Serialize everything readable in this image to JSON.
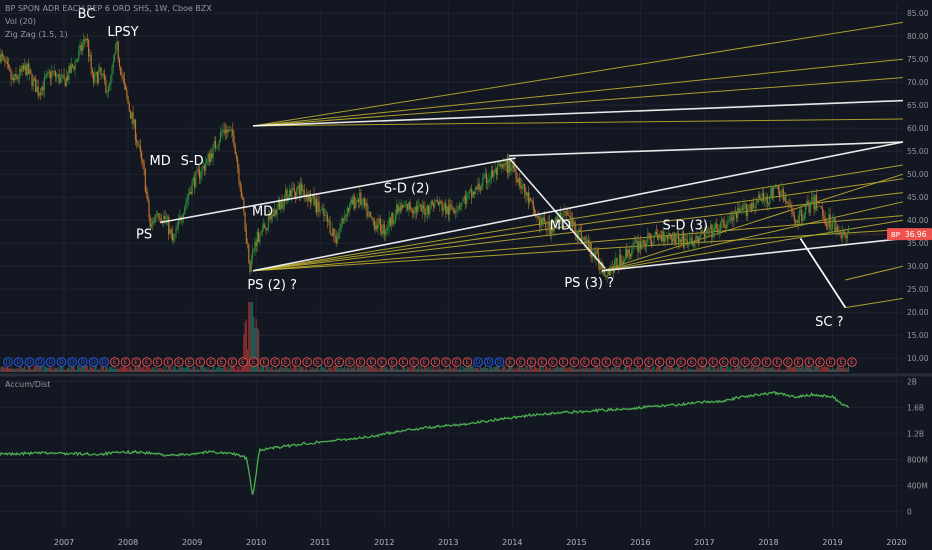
{
  "header": {
    "symbol_line": "BP SPON ADR EACH REP 6 ORD SHS, 1W, Cboe BZX",
    "vol_line": "Vol (20)",
    "zigzag_line": "Zig Zag (1.5, 1)"
  },
  "colors": {
    "background": "#131722",
    "up": "#26a69a",
    "down": "#ef5350",
    "candle_up": "#2e8b3a",
    "candle_down": "#c0742d",
    "channel_main": "#ffffff",
    "channel_minor": "#c8b72e",
    "accdist": "#4caf50",
    "price_badge": "#ef5350",
    "dividend_blue": "#2962ff"
  },
  "chart_data": [
    {
      "type": "candlestick",
      "price_axis": {
        "ticks": [
          "85.00",
          "80.00",
          "75.00",
          "70.00",
          "65.00",
          "60.00",
          "55.00",
          "50.00",
          "45.00",
          "40.00",
          "35.00",
          "30.00",
          "25.00",
          "20.00",
          "15.00",
          "10.00"
        ],
        "range": [
          7,
          87
        ]
      },
      "x_axis": {
        "ticks": [
          "2007",
          "2008",
          "2009",
          "2010",
          "2011",
          "2012",
          "2013",
          "2014",
          "2015",
          "2016",
          "2017",
          "2018",
          "2019",
          "2020"
        ],
        "range": [
          2006.5,
          2020.6
        ]
      },
      "last_price": {
        "symbol": "BP",
        "value": "36.96"
      },
      "price_path": [
        [
          2006.5,
          76
        ],
        [
          2006.7,
          70
        ],
        [
          2006.9,
          73
        ],
        [
          2007.1,
          68
        ],
        [
          2007.3,
          72
        ],
        [
          2007.5,
          70
        ],
        [
          2007.7,
          75
        ],
        [
          2007.85,
          80
        ],
        [
          2007.95,
          70
        ],
        [
          2008.05,
          72
        ],
        [
          2008.2,
          68
        ],
        [
          2008.32,
          78
        ],
        [
          2008.45,
          68
        ],
        [
          2008.6,
          60
        ],
        [
          2008.75,
          50
        ],
        [
          2008.85,
          38
        ],
        [
          2008.95,
          42
        ],
        [
          2009.1,
          40
        ],
        [
          2009.2,
          35
        ],
        [
          2009.35,
          42
        ],
        [
          2009.5,
          48
        ],
        [
          2009.7,
          52
        ],
        [
          2009.85,
          56
        ],
        [
          2010.0,
          60
        ],
        [
          2010.15,
          58
        ],
        [
          2010.25,
          48
        ],
        [
          2010.4,
          30
        ],
        [
          2010.5,
          36
        ],
        [
          2010.7,
          40
        ],
        [
          2010.9,
          44
        ],
        [
          2011.0,
          46
        ],
        [
          2011.2,
          47
        ],
        [
          2011.4,
          44
        ],
        [
          2011.6,
          40
        ],
        [
          2011.75,
          36
        ],
        [
          2011.9,
          42
        ],
        [
          2012.1,
          45
        ],
        [
          2012.3,
          40
        ],
        [
          2012.5,
          38
        ],
        [
          2012.7,
          42
        ],
        [
          2012.9,
          43
        ],
        [
          2013.1,
          42
        ],
        [
          2013.3,
          44
        ],
        [
          2013.5,
          42
        ],
        [
          2013.7,
          44
        ],
        [
          2013.9,
          46
        ],
        [
          2014.1,
          49
        ],
        [
          2014.3,
          51
        ],
        [
          2014.5,
          52
        ],
        [
          2014.7,
          46
        ],
        [
          2014.9,
          40
        ],
        [
          2015.1,
          38
        ],
        [
          2015.3,
          42
        ],
        [
          2015.5,
          38
        ],
        [
          2015.65,
          35
        ],
        [
          2015.8,
          32
        ],
        [
          2015.95,
          29
        ],
        [
          2016.1,
          30
        ],
        [
          2016.3,
          33
        ],
        [
          2016.5,
          35
        ],
        [
          2016.7,
          36
        ],
        [
          2016.9,
          37
        ],
        [
          2017.1,
          36
        ],
        [
          2017.3,
          35
        ],
        [
          2017.5,
          37
        ],
        [
          2017.7,
          38
        ],
        [
          2017.9,
          40
        ],
        [
          2018.1,
          42
        ],
        [
          2018.3,
          44
        ],
        [
          2018.5,
          45
        ],
        [
          2018.65,
          47
        ],
        [
          2018.8,
          43
        ],
        [
          2018.95,
          40
        ],
        [
          2019.1,
          43
        ],
        [
          2019.25,
          44
        ],
        [
          2019.4,
          40
        ],
        [
          2019.55,
          39
        ],
        [
          2019.7,
          36
        ],
        [
          2019.75,
          37
        ]
      ],
      "annotations": [
        {
          "text": "BC",
          "x": 2007.85,
          "y": 84
        },
        {
          "text": "LPSY",
          "x": 2008.42,
          "y": 80
        },
        {
          "text": "MD",
          "x": 2009.0,
          "y": 52
        },
        {
          "text": "S-D",
          "x": 2009.5,
          "y": 52
        },
        {
          "text": "PS",
          "x": 2008.75,
          "y": 36
        },
        {
          "text": "MD",
          "x": 2010.6,
          "y": 41
        },
        {
          "text": "PS (2) ?",
          "x": 2010.75,
          "y": 25
        },
        {
          "text": "S-D (2)",
          "x": 2012.85,
          "y": 46
        },
        {
          "text": "MD",
          "x": 2015.25,
          "y": 38
        },
        {
          "text": "S-D (3)",
          "x": 2017.2,
          "y": 38
        },
        {
          "text": "PS (3) ?",
          "x": 2015.7,
          "y": 25.5
        },
        {
          "text": "SC ?",
          "x": 2019.45,
          "y": 17
        }
      ],
      "channels_main": [
        [
          [
            2009.0,
            39.5
          ],
          [
            2014.55,
            53.5
          ]
        ],
        [
          [
            2014.45,
            54
          ],
          [
            2020.6,
            57
          ]
        ],
        [
          [
            2010.45,
            60.5
          ],
          [
            2020.6,
            66
          ]
        ],
        [
          [
            2010.45,
            29
          ],
          [
            2020.6,
            57
          ]
        ],
        [
          [
            2014.45,
            53.5
          ],
          [
            2015.95,
            29.5
          ]
        ],
        [
          [
            2015.9,
            29
          ],
          [
            2020.6,
            36
          ]
        ],
        [
          [
            2019.0,
            36
          ],
          [
            2019.7,
            21
          ]
        ],
        [
          [
            2019.7,
            21
          ],
          [
            2019.0,
            36
          ]
        ]
      ],
      "channels_minor": [
        [
          [
            2010.45,
            60.5
          ],
          [
            2020.6,
            83
          ]
        ],
        [
          [
            2010.45,
            60.5
          ],
          [
            2020.6,
            75
          ]
        ],
        [
          [
            2010.45,
            60.5
          ],
          [
            2020.6,
            71
          ]
        ],
        [
          [
            2010.45,
            60.5
          ],
          [
            2020.6,
            62
          ]
        ],
        [
          [
            2010.45,
            29
          ],
          [
            2020.6,
            52
          ]
        ],
        [
          [
            2010.45,
            29
          ],
          [
            2020.6,
            49
          ]
        ],
        [
          [
            2010.45,
            29
          ],
          [
            2020.6,
            46
          ]
        ],
        [
          [
            2010.45,
            29
          ],
          [
            2020.6,
            41
          ]
        ],
        [
          [
            2010.45,
            29
          ],
          [
            2020.6,
            38
          ]
        ],
        [
          [
            2015.9,
            29
          ],
          [
            2020.6,
            50
          ]
        ],
        [
          [
            2015.9,
            29
          ],
          [
            2020.6,
            44
          ]
        ],
        [
          [
            2015.9,
            29
          ],
          [
            2020.6,
            40
          ]
        ],
        [
          [
            2019.7,
            21
          ],
          [
            2020.6,
            23
          ]
        ],
        [
          [
            2019.7,
            27
          ],
          [
            2020.6,
            30
          ]
        ]
      ],
      "dividend_markers": {
        "labels": [
          "D",
          "D",
          "D",
          "D",
          "D",
          "D",
          "D",
          "D",
          "D",
          "D",
          "E",
          "E",
          "E",
          "E",
          "E",
          "E",
          "E",
          "E",
          "E",
          "E",
          "E",
          "E",
          "E",
          "E",
          "E",
          "E",
          "E",
          "E",
          "E",
          "E",
          "E",
          "E",
          "E",
          "E",
          "E",
          "E",
          "E",
          "E",
          "E",
          "E",
          "E",
          "E",
          "E",
          "E",
          "D",
          "D",
          "D",
          "E",
          "E",
          "E",
          "E",
          "E",
          "E",
          "E",
          "E",
          "E",
          "E",
          "E",
          "E",
          "E",
          "E",
          "E",
          "E",
          "E",
          "E",
          "E",
          "E",
          "E",
          "E",
          "E",
          "E",
          "E",
          "E",
          "E",
          "E",
          "E",
          "E",
          "E",
          "E",
          "E"
        ]
      }
    },
    {
      "type": "line",
      "name": "Accum/Dist",
      "y_axis": {
        "ticks": [
          "2B",
          "1.6B",
          "1.2B",
          "800M",
          "400M",
          "0"
        ],
        "range_billions": [
          -0.25,
          2.05
        ]
      },
      "x": [
        2006.5,
        2007.2,
        2008.0,
        2008.6,
        2009.2,
        2009.8,
        2010.2,
        2010.35,
        2010.45,
        2010.55,
        2010.8,
        2011.3,
        2011.8,
        2012.3,
        2012.8,
        2013.3,
        2013.8,
        2014.3,
        2014.8,
        2015.3,
        2015.8,
        2016.3,
        2016.8,
        2017.3,
        2017.8,
        2018.2,
        2018.6,
        2018.9,
        2019.2,
        2019.5,
        2019.7,
        2019.75
      ],
      "values": [
        0.88,
        0.9,
        0.88,
        0.92,
        0.86,
        0.92,
        0.88,
        0.82,
        0.22,
        0.95,
        0.98,
        1.05,
        1.1,
        1.15,
        1.25,
        1.3,
        1.35,
        1.42,
        1.48,
        1.52,
        1.55,
        1.58,
        1.62,
        1.66,
        1.7,
        1.78,
        1.82,
        1.76,
        1.8,
        1.76,
        1.62,
        1.6
      ]
    }
  ]
}
